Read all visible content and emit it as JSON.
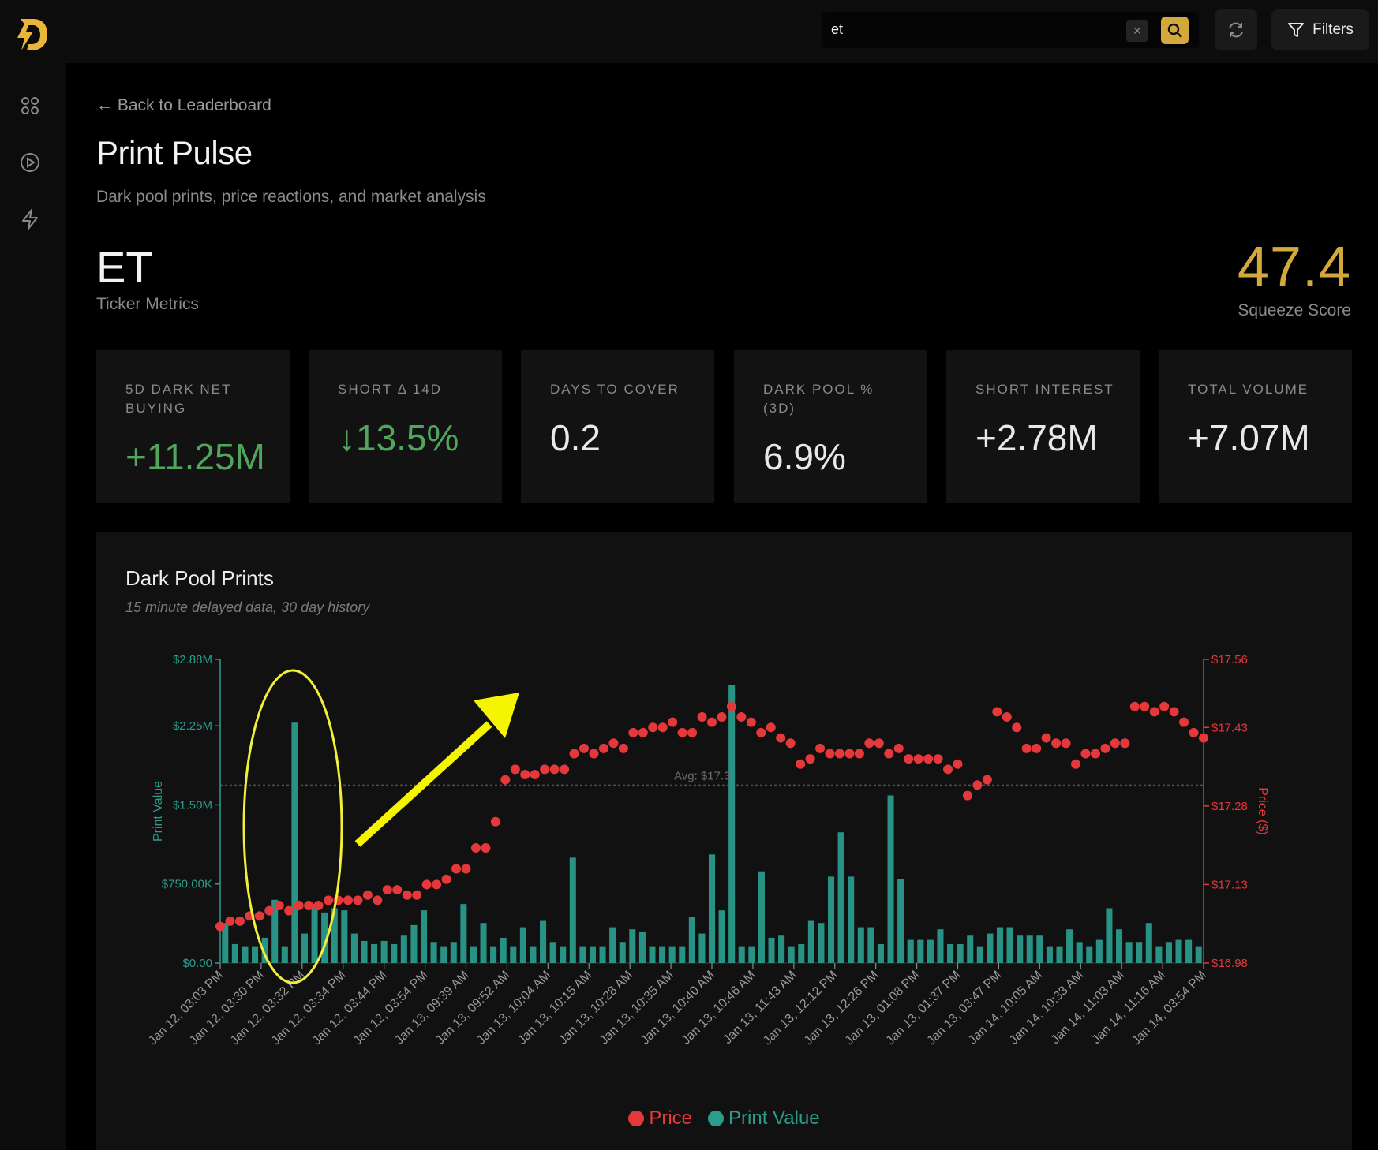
{
  "search": {
    "value": "et",
    "clear_icon": "x-icon"
  },
  "topbar": {
    "filters_label": "Filters"
  },
  "header": {
    "back_label": "← Back to Leaderboard",
    "title": "Print Pulse",
    "subtitle": "Dark pool prints, price reactions, and market analysis"
  },
  "ticker": {
    "symbol": "ET",
    "label": "Ticker Metrics",
    "score": "47.4",
    "score_label": "Squeeze Score"
  },
  "metrics": [
    {
      "label": "5D DARK NET BUYING",
      "value": "+11.25M",
      "color": "#4fa65c"
    },
    {
      "label": "SHORT Δ 14D",
      "value": "↓13.5%",
      "color": "#4fa65c"
    },
    {
      "label": "DAYS TO COVER",
      "value": "0.2",
      "color": "#e8e8e8"
    },
    {
      "label": "DARK POOL % (3D)",
      "value": "6.9%",
      "color": "#e8e8e8"
    },
    {
      "label": "SHORT INTEREST",
      "value": "+2.78M",
      "color": "#e8e8e8"
    },
    {
      "label": "TOTAL VOLUME",
      "value": "+7.07M",
      "color": "#e8e8e8"
    }
  ],
  "chart": {
    "title": "Dark Pool Prints",
    "subtitle": "15 minute delayed data, 30 day history",
    "legend": {
      "price": "Price",
      "print_value": "Print Value"
    }
  },
  "chart_data": {
    "type": "bar",
    "title": "Dark Pool Prints",
    "ylabel": "Print Value",
    "y2label": "Price ($)",
    "ylim": [
      0,
      2880000
    ],
    "y2lim": [
      16.98,
      17.56
    ],
    "left_ticks": [
      "$0.00",
      "$750.00K",
      "$1.50M",
      "$2.25M",
      "$2.88M"
    ],
    "left_tick_values": [
      0,
      750000,
      1500000,
      2250000,
      2880000
    ],
    "right_ticks": [
      "$16.98",
      "$17.13",
      "$17.28",
      "$17.43",
      "$17.56"
    ],
    "right_tick_values": [
      16.98,
      17.13,
      17.28,
      17.43,
      17.56
    ],
    "x_tick_labels": [
      "Jan 12, 03:03 PM",
      "Jan 12, 03:30 PM",
      "Jan 12, 03:32 PM",
      "Jan 12, 03:34 PM",
      "Jan 12, 03:44 PM",
      "Jan 12, 03:54 PM",
      "Jan 13, 09:39 AM",
      "Jan 13, 09:52 AM",
      "Jan 13, 10:04 AM",
      "Jan 13, 10:15 AM",
      "Jan 13, 10:28 AM",
      "Jan 13, 10:35 AM",
      "Jan 13, 10:40 AM",
      "Jan 13, 10:46 AM",
      "Jan 13, 11:43 AM",
      "Jan 13, 12:12 PM",
      "Jan 13, 12:26 PM",
      "Jan 13, 01:08 PM",
      "Jan 13, 01:37 PM",
      "Jan 13, 03:47 PM",
      "Jan 14, 10:05 AM",
      "Jan 14, 10:33 AM",
      "Jan 14, 11:03 AM",
      "Jan 14, 11:16 AM",
      "Jan 14, 03:54 PM"
    ],
    "avg_price_label": "Avg: $17.3",
    "avg_price": 17.32,
    "print_values": [
      380000,
      180000,
      160000,
      160000,
      240000,
      600000,
      160000,
      2280000,
      280000,
      560000,
      480000,
      520000,
      500000,
      280000,
      210000,
      180000,
      210000,
      180000,
      260000,
      360000,
      500000,
      200000,
      160000,
      200000,
      560000,
      160000,
      380000,
      160000,
      240000,
      160000,
      340000,
      160000,
      400000,
      200000,
      160000,
      1000000,
      160000,
      160000,
      160000,
      340000,
      200000,
      320000,
      300000,
      160000,
      160000,
      160000,
      160000,
      440000,
      280000,
      1030000,
      500000,
      2640000,
      160000,
      160000,
      870000,
      240000,
      260000,
      160000,
      180000,
      400000,
      380000,
      820000,
      1240000,
      820000,
      340000,
      340000,
      180000,
      1590000,
      800000,
      220000,
      220000,
      220000,
      320000,
      180000,
      180000,
      260000,
      160000,
      280000,
      340000,
      340000,
      260000,
      260000,
      260000,
      160000,
      160000,
      320000,
      200000,
      160000,
      220000,
      520000,
      320000,
      200000,
      200000,
      380000,
      160000,
      200000,
      220000,
      220000,
      160000
    ],
    "prices": [
      17.05,
      17.06,
      17.06,
      17.07,
      17.07,
      17.08,
      17.09,
      17.08,
      17.09,
      17.09,
      17.09,
      17.1,
      17.1,
      17.1,
      17.1,
      17.11,
      17.1,
      17.12,
      17.12,
      17.11,
      17.11,
      17.13,
      17.13,
      17.14,
      17.16,
      17.16,
      17.2,
      17.2,
      17.25,
      17.33,
      17.35,
      17.34,
      17.34,
      17.35,
      17.35,
      17.35,
      17.38,
      17.39,
      17.38,
      17.39,
      17.4,
      17.39,
      17.42,
      17.42,
      17.43,
      17.43,
      17.44,
      17.42,
      17.42,
      17.45,
      17.44,
      17.45,
      17.47,
      17.45,
      17.44,
      17.42,
      17.43,
      17.41,
      17.4,
      17.36,
      17.37,
      17.39,
      17.38,
      17.38,
      17.38,
      17.38,
      17.4,
      17.4,
      17.38,
      17.39,
      17.37,
      17.37,
      17.37,
      17.37,
      17.35,
      17.36,
      17.3,
      17.32,
      17.33,
      17.46,
      17.45,
      17.43,
      17.39,
      17.39,
      17.41,
      17.4,
      17.4,
      17.36,
      17.38,
      17.38,
      17.39,
      17.4,
      17.4,
      17.47,
      17.47,
      17.46,
      17.47,
      17.46,
      17.44,
      17.42,
      17.41
    ]
  }
}
